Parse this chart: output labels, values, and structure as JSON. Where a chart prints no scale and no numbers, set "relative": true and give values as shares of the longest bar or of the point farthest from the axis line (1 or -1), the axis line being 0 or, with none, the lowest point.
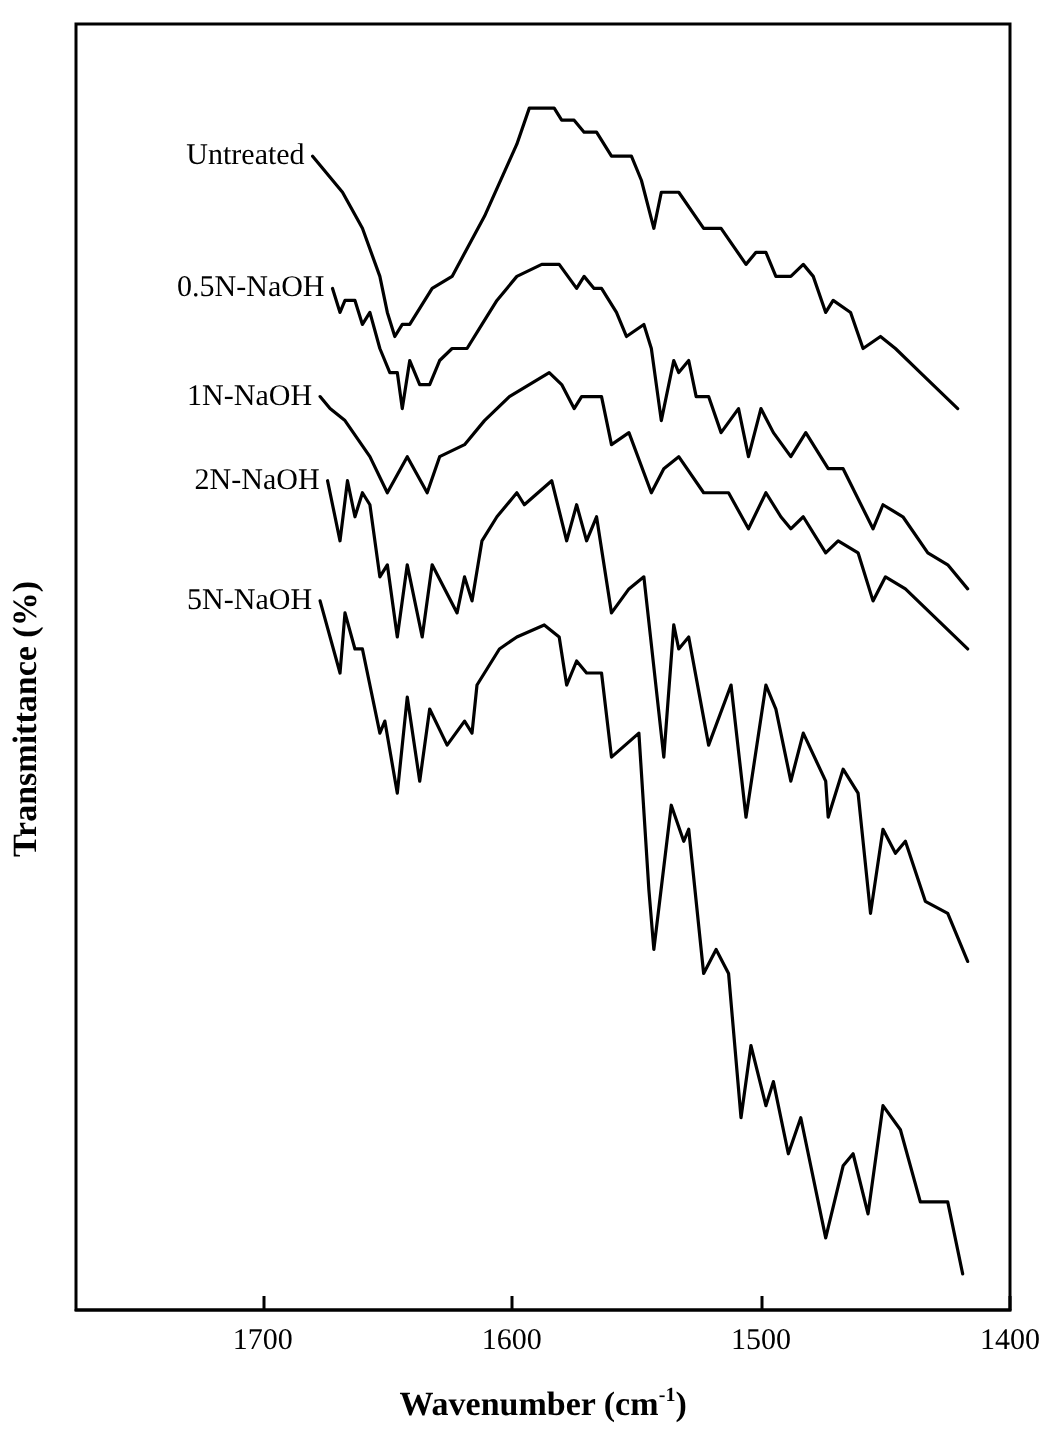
{
  "chart_data": {
    "type": "line",
    "xlabel": "Wavenumber (cm$^{-1}$)",
    "ylabel": "Transmittance (%)",
    "relative": true,
    "xlim": [
      1775,
      1400
    ],
    "xticks": [
      1700,
      1600,
      1500,
      1400
    ],
    "grid": false,
    "legend": false,
    "marker": "none",
    "line_style": "solid",
    "series": [
      {
        "name": "Untreated",
        "color": "#000000",
        "x": [
          1680,
          1668,
          1660,
          1653,
          1650,
          1647,
          1644,
          1641,
          1632,
          1624,
          1611,
          1598,
          1593,
          1588,
          1583,
          1580,
          1575,
          1571,
          1566,
          1560,
          1552,
          1548,
          1543,
          1540,
          1538,
          1535,
          1533,
          1523,
          1516,
          1506,
          1502,
          1498,
          1494,
          1488,
          1483,
          1479,
          1474,
          1471,
          1464,
          1459,
          1452,
          1446,
          1436,
          1421
        ],
        "values": [
          0.96,
          0.93,
          0.9,
          0.86,
          0.83,
          0.81,
          0.82,
          0.82,
          0.85,
          0.86,
          0.91,
          0.97,
          1.0,
          1.0,
          1.0,
          0.99,
          0.99,
          0.98,
          0.98,
          0.96,
          0.96,
          0.94,
          0.9,
          0.93,
          0.93,
          0.93,
          0.93,
          0.9,
          0.9,
          0.87,
          0.88,
          0.88,
          0.86,
          0.86,
          0.87,
          0.86,
          0.83,
          0.84,
          0.83,
          0.8,
          0.81,
          0.8,
          0.78,
          0.75
        ]
      },
      {
        "name": "0.5N-NaOH",
        "color": "#000000",
        "x": [
          1672,
          1669,
          1667,
          1663,
          1660,
          1657,
          1653,
          1649,
          1646,
          1644,
          1641,
          1637,
          1633,
          1629,
          1624,
          1618,
          1612,
          1606,
          1598,
          1588,
          1581,
          1574,
          1571,
          1567,
          1564,
          1558,
          1554,
          1547,
          1544,
          1540,
          1535,
          1533,
          1529,
          1526,
          1521,
          1516,
          1509,
          1505,
          1500,
          1495,
          1488,
          1482,
          1473,
          1467,
          1455,
          1451,
          1443,
          1433,
          1425,
          1417
        ],
        "values": [
          0.85,
          0.83,
          0.84,
          0.84,
          0.82,
          0.83,
          0.8,
          0.78,
          0.78,
          0.75,
          0.79,
          0.77,
          0.77,
          0.79,
          0.8,
          0.8,
          0.82,
          0.84,
          0.86,
          0.87,
          0.87,
          0.85,
          0.86,
          0.85,
          0.85,
          0.83,
          0.81,
          0.82,
          0.8,
          0.74,
          0.79,
          0.78,
          0.79,
          0.76,
          0.76,
          0.73,
          0.75,
          0.71,
          0.75,
          0.73,
          0.71,
          0.73,
          0.7,
          0.7,
          0.65,
          0.67,
          0.66,
          0.63,
          0.62,
          0.6
        ]
      },
      {
        "name": "1N-NaOH",
        "color": "#000000",
        "x": [
          1677,
          1673,
          1667,
          1657,
          1650,
          1642,
          1634,
          1629,
          1619,
          1611,
          1601,
          1585,
          1580,
          1575,
          1572,
          1567,
          1564,
          1560,
          1553,
          1544,
          1539,
          1533,
          1523,
          1518,
          1513,
          1505,
          1498,
          1492,
          1488,
          1483,
          1474,
          1469,
          1461,
          1455,
          1450,
          1442,
          1432,
          1417
        ],
        "values": [
          0.76,
          0.75,
          0.74,
          0.71,
          0.68,
          0.71,
          0.68,
          0.71,
          0.72,
          0.74,
          0.76,
          0.78,
          0.77,
          0.75,
          0.76,
          0.76,
          0.76,
          0.72,
          0.73,
          0.68,
          0.7,
          0.71,
          0.68,
          0.68,
          0.68,
          0.65,
          0.68,
          0.66,
          0.65,
          0.66,
          0.63,
          0.64,
          0.63,
          0.59,
          0.61,
          0.6,
          0.58,
          0.55
        ]
      },
      {
        "name": "2N-NaOH",
        "color": "#000000",
        "x": [
          1674,
          1669,
          1666,
          1663,
          1660,
          1657,
          1653,
          1650,
          1646,
          1642,
          1636,
          1632,
          1622,
          1619,
          1616,
          1612,
          1606,
          1598,
          1595,
          1584,
          1578,
          1574,
          1570,
          1566,
          1560,
          1553,
          1547,
          1539,
          1535,
          1533,
          1529,
          1521,
          1512,
          1506,
          1498,
          1494,
          1488,
          1483,
          1474,
          1473,
          1467,
          1461,
          1456,
          1451,
          1446,
          1442,
          1434,
          1425,
          1417
        ],
        "values": [
          0.69,
          0.64,
          0.69,
          0.66,
          0.68,
          0.67,
          0.61,
          0.62,
          0.56,
          0.62,
          0.56,
          0.62,
          0.58,
          0.61,
          0.59,
          0.64,
          0.66,
          0.68,
          0.67,
          0.69,
          0.64,
          0.67,
          0.64,
          0.66,
          0.58,
          0.6,
          0.61,
          0.46,
          0.57,
          0.55,
          0.56,
          0.47,
          0.52,
          0.41,
          0.52,
          0.5,
          0.44,
          0.48,
          0.44,
          0.41,
          0.45,
          0.43,
          0.33,
          0.4,
          0.38,
          0.39,
          0.34,
          0.33,
          0.29
        ]
      },
      {
        "name": "5N-NaOH",
        "color": "#000000",
        "x": [
          1677,
          1669,
          1667,
          1663,
          1660,
          1653,
          1651,
          1646,
          1642,
          1637,
          1633,
          1626,
          1619,
          1616,
          1614,
          1605,
          1598,
          1587,
          1581,
          1578,
          1574,
          1570,
          1564,
          1560,
          1549,
          1545,
          1543,
          1536,
          1531,
          1529,
          1523,
          1518,
          1513,
          1508,
          1504,
          1498,
          1495,
          1489,
          1484,
          1474,
          1467,
          1463,
          1457,
          1451,
          1444,
          1436,
          1425,
          1419
        ],
        "values": [
          0.59,
          0.53,
          0.58,
          0.55,
          0.55,
          0.48,
          0.49,
          0.43,
          0.51,
          0.44,
          0.5,
          0.47,
          0.49,
          0.48,
          0.52,
          0.55,
          0.56,
          0.57,
          0.56,
          0.52,
          0.54,
          0.53,
          0.53,
          0.46,
          0.48,
          0.35,
          0.3,
          0.42,
          0.39,
          0.4,
          0.28,
          0.3,
          0.28,
          0.16,
          0.22,
          0.17,
          0.19,
          0.13,
          0.16,
          0.06,
          0.12,
          0.13,
          0.08,
          0.17,
          0.15,
          0.09,
          0.09,
          0.03
        ]
      }
    ]
  }
}
